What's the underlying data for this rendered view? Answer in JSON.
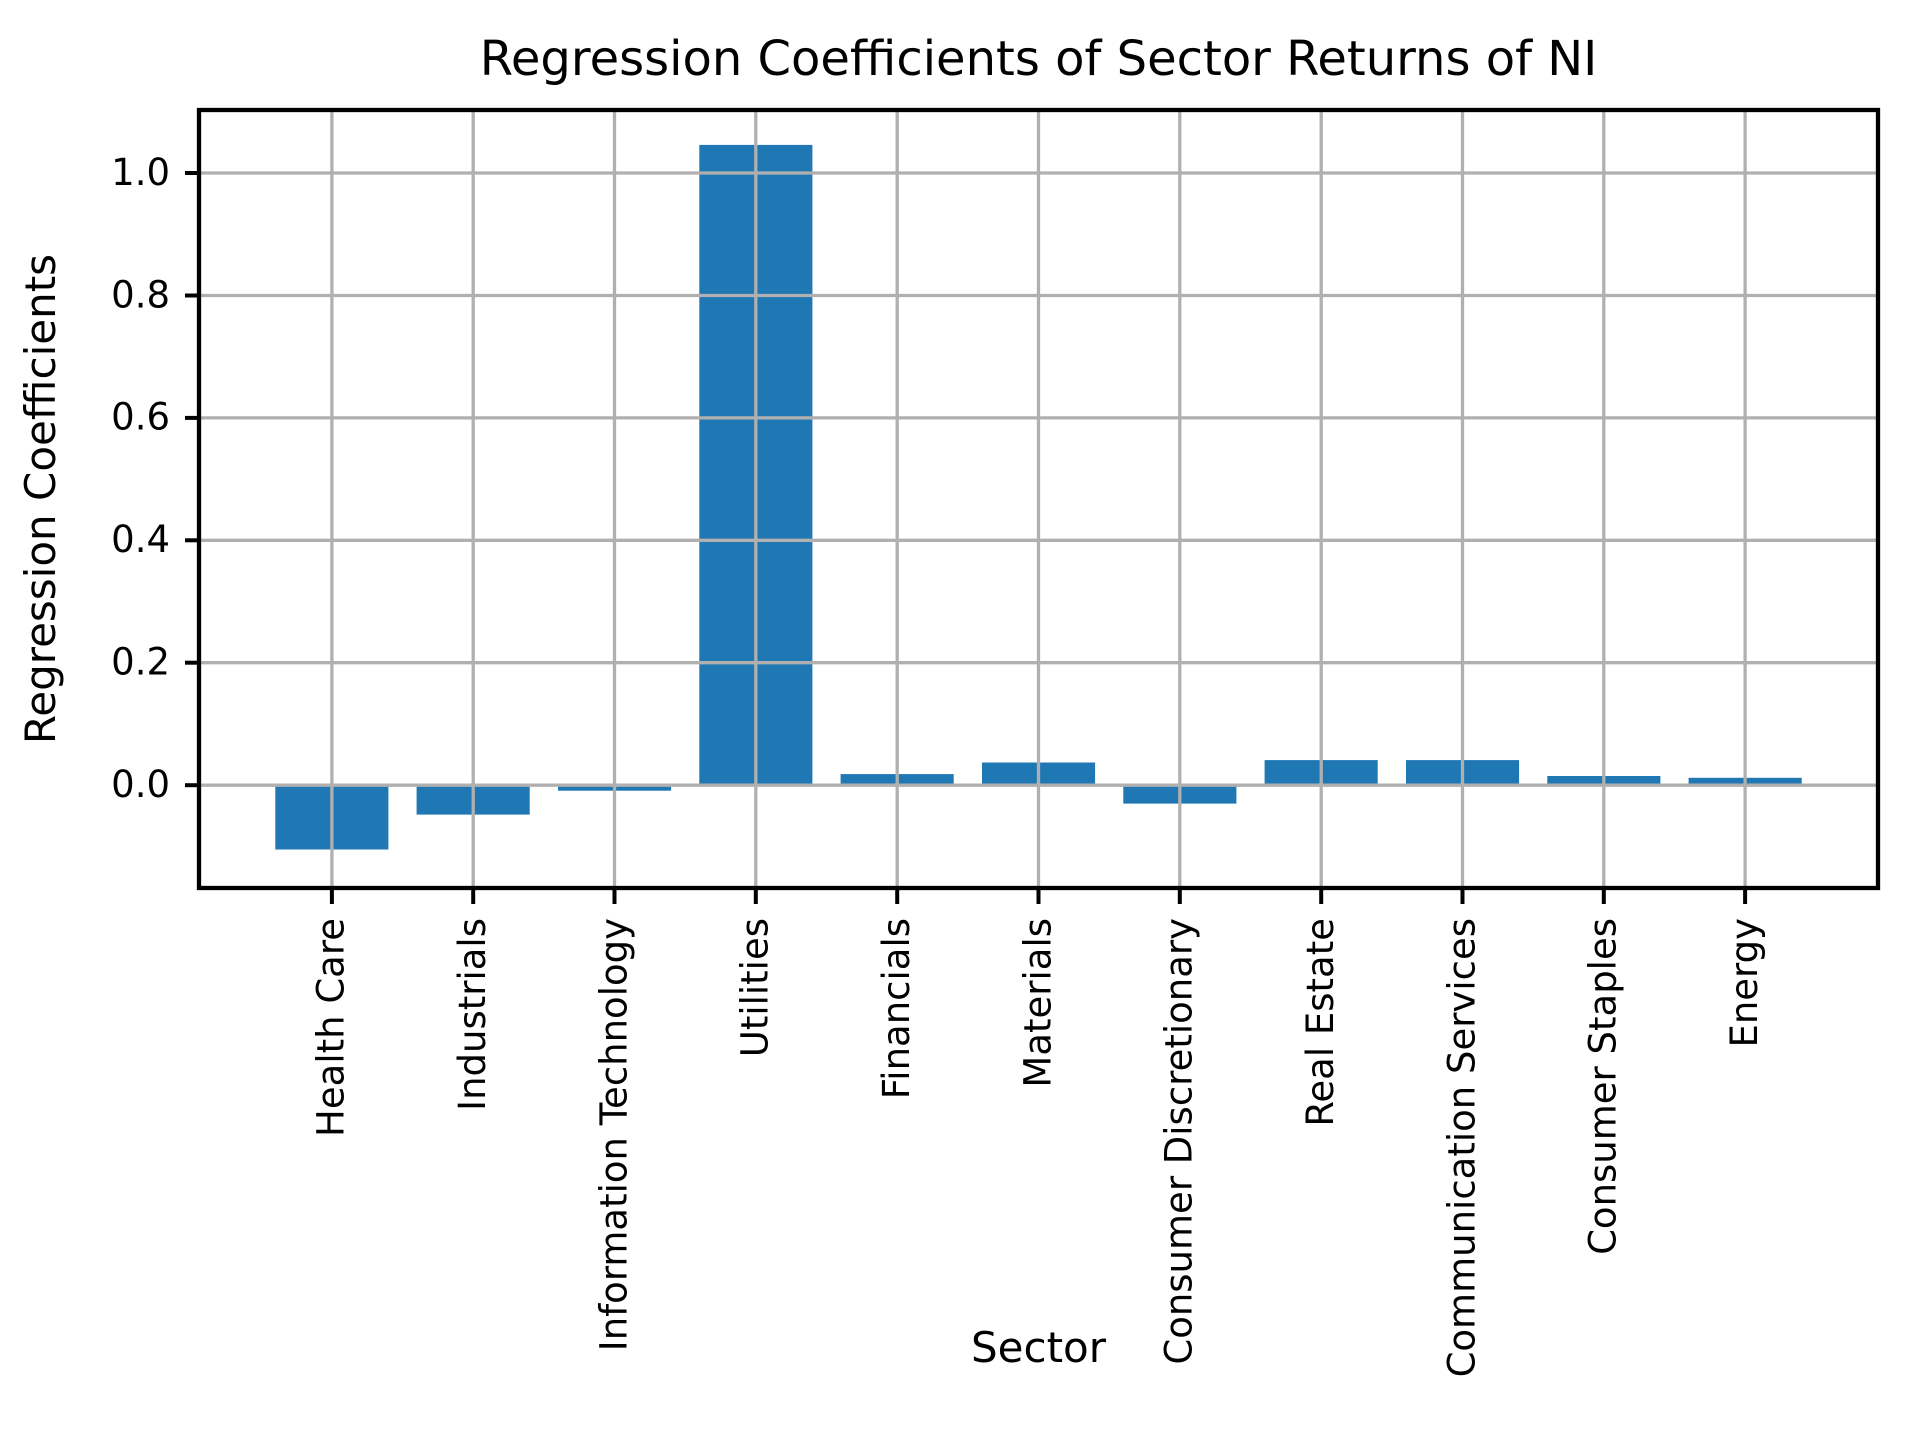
{
  "chart_data": {
    "type": "bar",
    "title": "Regression Coefficients of Sector Returns of NI",
    "xlabel": "Sector",
    "ylabel": "Regression Coefficients",
    "categories": [
      "Health Care",
      "Industrials",
      "Information Technology",
      "Utilities",
      "Financials",
      "Materials",
      "Consumer Discretionary",
      "Real Estate",
      "Communication Services",
      "Consumer Staples",
      "Energy"
    ],
    "values": [
      -0.105,
      -0.048,
      -0.009,
      1.046,
      0.018,
      0.037,
      -0.03,
      0.041,
      0.041,
      0.015,
      0.012
    ],
    "yticks": [
      0.0,
      0.2,
      0.4,
      0.6,
      0.8,
      1.0
    ],
    "ytick_labels": [
      "0.0",
      "0.2",
      "0.4",
      "0.6",
      "0.8",
      "1.0"
    ],
    "ylim": [
      -0.168,
      1.103
    ],
    "grid": true,
    "grid_on_top_of_bars": true,
    "legend": null,
    "bar_color": "#1f77b4",
    "grid_color": "#b0b0b0",
    "spine_color": "#000000",
    "text_color": "#000000",
    "background_color": "#ffffff",
    "xtick_label_rotation_degrees": 90
  }
}
